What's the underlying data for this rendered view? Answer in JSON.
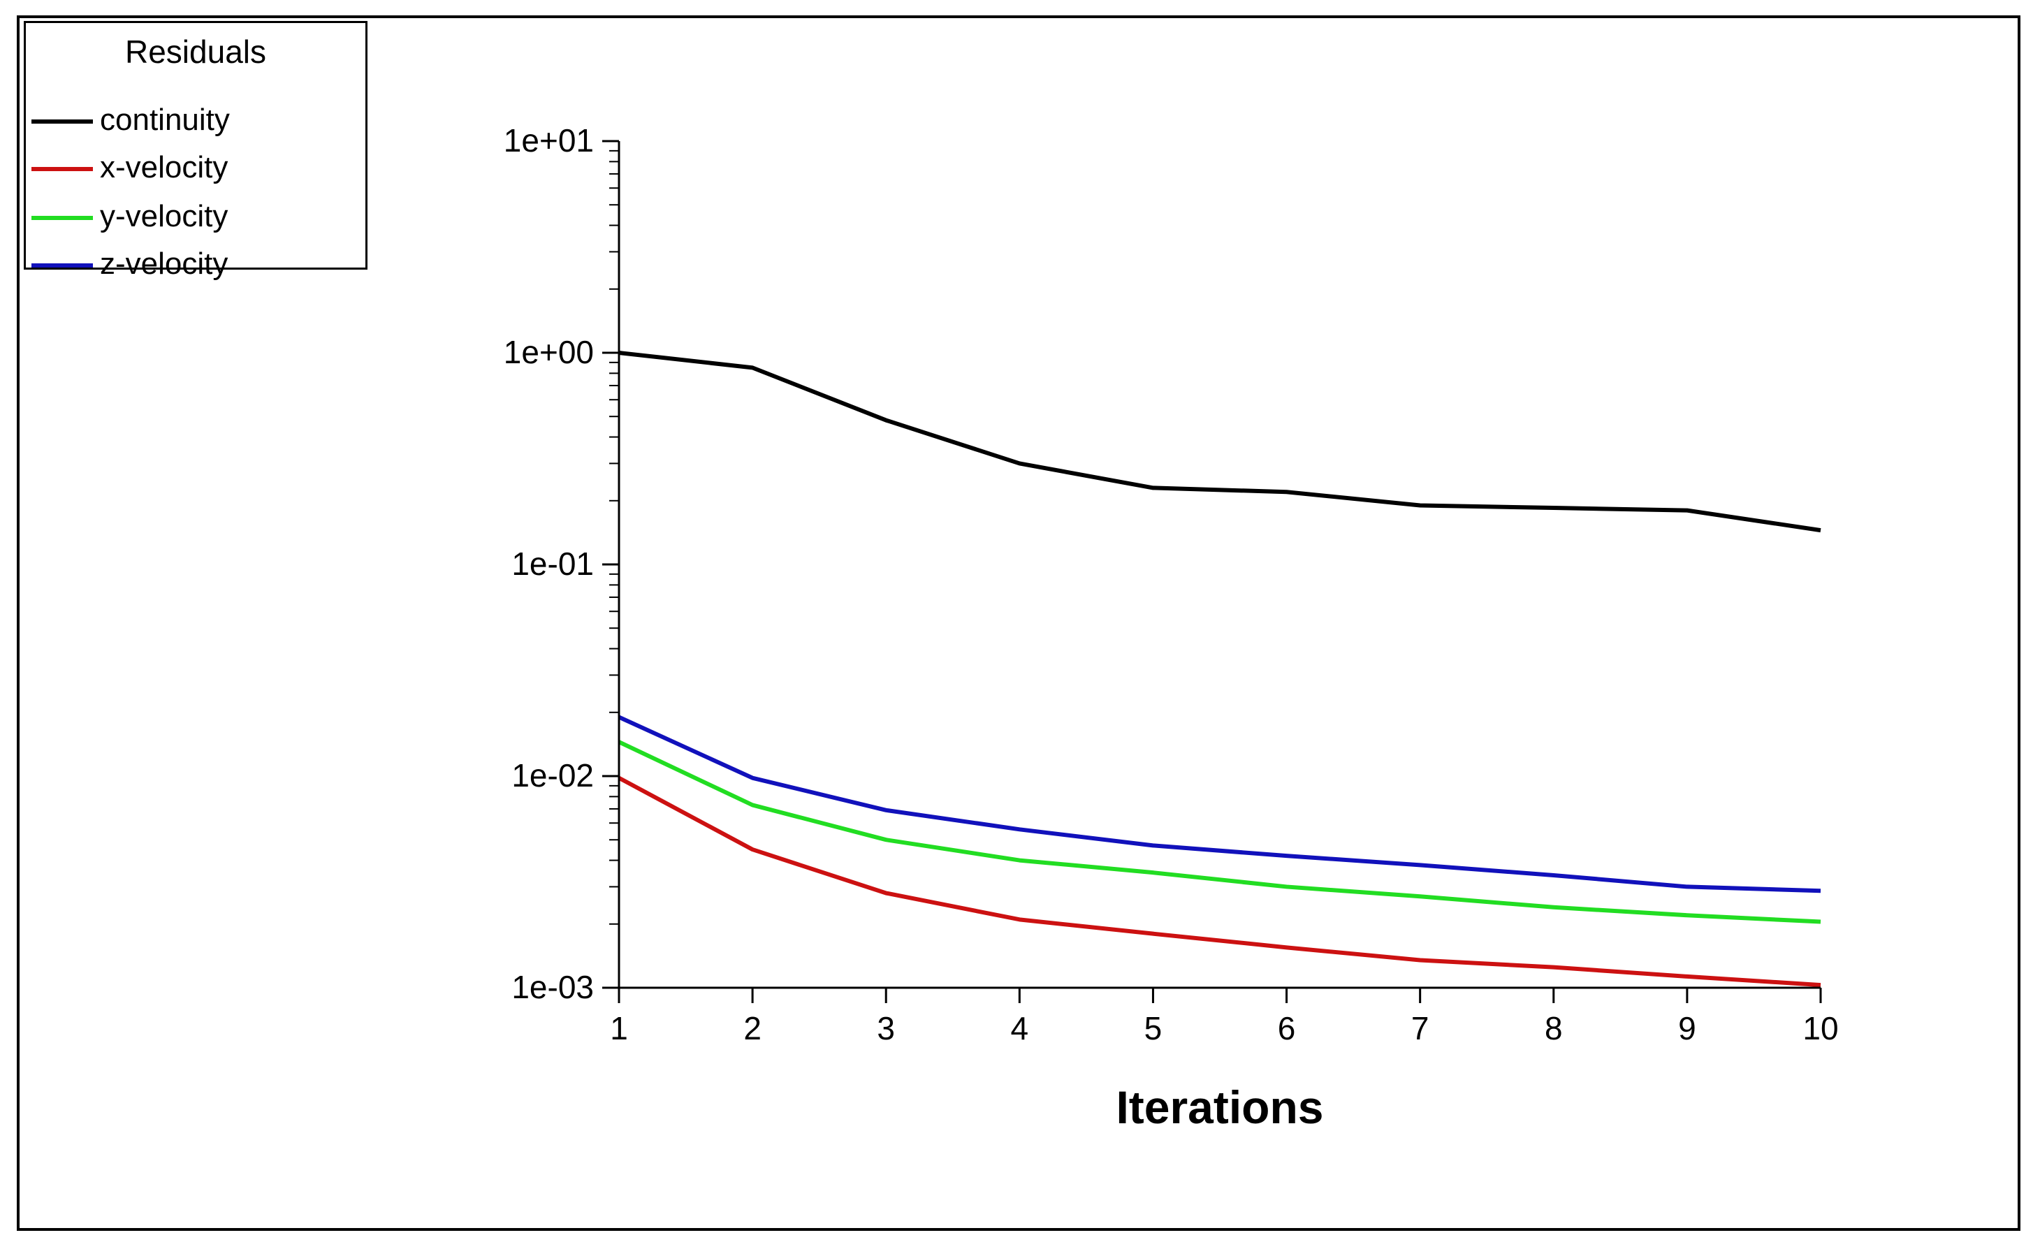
{
  "chart_data": {
    "type": "line",
    "title": "",
    "xlabel": "Iterations",
    "ylabel": "",
    "yscale": "log",
    "xlim": [
      1,
      10
    ],
    "ylim": [
      0.001,
      10
    ],
    "x": [
      1,
      2,
      3,
      4,
      5,
      6,
      7,
      8,
      9,
      10
    ],
    "x_tick_labels": [
      "1",
      "2",
      "3",
      "4",
      "5",
      "6",
      "7",
      "8",
      "9",
      "10"
    ],
    "y_tick_labels": [
      "1e+01",
      "1e+00",
      "1e-01",
      "1e-02",
      "1e-03"
    ],
    "y_tick_values": [
      10,
      1,
      0.1,
      0.01,
      0.001
    ],
    "legend": {
      "title": "Residuals",
      "position": "top-left"
    },
    "series": [
      {
        "name": "continuity",
        "color": "#000000",
        "values": [
          1.0,
          0.85,
          0.48,
          0.3,
          0.23,
          0.22,
          0.19,
          0.185,
          0.18,
          0.145
        ]
      },
      {
        "name": "x-velocity",
        "color": "#cc1111",
        "values": [
          0.0098,
          0.0045,
          0.0028,
          0.0021,
          0.0018,
          0.00155,
          0.00135,
          0.00125,
          0.00113,
          0.00103
        ]
      },
      {
        "name": "y-velocity",
        "color": "#22dd22",
        "values": [
          0.0145,
          0.0073,
          0.005,
          0.004,
          0.0035,
          0.003,
          0.0027,
          0.0024,
          0.0022,
          0.00205
        ]
      },
      {
        "name": "z-velocity",
        "color": "#1111bb",
        "values": [
          0.019,
          0.0098,
          0.0069,
          0.0056,
          0.0047,
          0.0042,
          0.0038,
          0.0034,
          0.003,
          0.00287
        ]
      }
    ]
  }
}
